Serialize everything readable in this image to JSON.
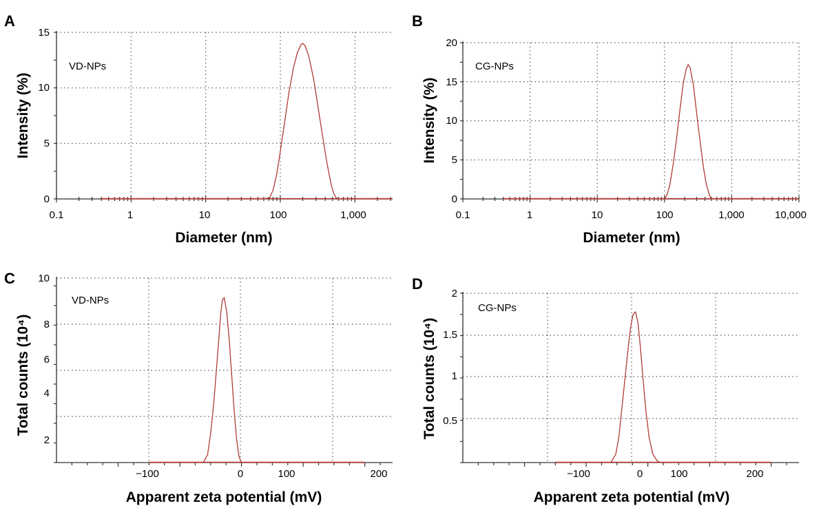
{
  "colors": {
    "curve": "#b03a32",
    "baseline": "#c9302c"
  },
  "chart_data": [
    {
      "id": "A",
      "panel_label": "A",
      "type": "line",
      "x_scale": "log",
      "xlabel": "Diameter (nm)",
      "ylabel": "Intensity (%)",
      "xlim": [
        0.1,
        3200
      ],
      "ylim": [
        0,
        15
      ],
      "x_ticks": [
        0.1,
        1,
        10,
        100,
        1000
      ],
      "x_tick_labels": [
        "0.1",
        "1",
        "10",
        "100",
        "1,000"
      ],
      "y_ticks": [
        0,
        5,
        10,
        15
      ],
      "y_tick_labels": [
        "0",
        "5",
        "10",
        "15"
      ],
      "annotation": "VD-NPs",
      "series": [
        {
          "x": [
            0.4,
            10,
            60,
            72,
            80,
            90,
            100,
            115,
            130,
            150,
            170,
            190,
            200,
            215,
            240,
            280,
            320,
            370,
            420,
            480,
            520,
            560,
            600,
            3200
          ],
          "y": [
            0,
            0,
            0,
            0.1,
            0.8,
            2.3,
            4.3,
            7.0,
            9.5,
            11.8,
            13.2,
            13.9,
            14.0,
            13.8,
            12.9,
            10.8,
            8.3,
            5.6,
            3.3,
            1.3,
            0.5,
            0.1,
            0,
            0
          ]
        }
      ]
    },
    {
      "id": "B",
      "panel_label": "B",
      "type": "line",
      "x_scale": "log",
      "xlabel": "Diameter (nm)",
      "ylabel": "Intensity (%)",
      "xlim": [
        0.1,
        10000
      ],
      "ylim": [
        0,
        20
      ],
      "x_ticks": [
        0.1,
        1,
        10,
        100,
        1000,
        10000
      ],
      "x_tick_labels": [
        "0.1",
        "1",
        "10",
        "100",
        "1,000",
        "10,000"
      ],
      "y_ticks": [
        0,
        5,
        10,
        15,
        20
      ],
      "y_tick_labels": [
        "0",
        "5",
        "10",
        "15",
        "20"
      ],
      "annotation": "CG-NPs",
      "series": [
        {
          "x": [
            0.4,
            10,
            80,
            100,
            110,
            120,
            135,
            150,
            170,
            190,
            210,
            225,
            240,
            270,
            300,
            340,
            380,
            420,
            470,
            500,
            10000
          ],
          "y": [
            0,
            0,
            0,
            0,
            0.6,
            1.8,
            4.5,
            7.5,
            11.5,
            14.8,
            16.6,
            17.2,
            16.8,
            14.5,
            11.0,
            7.2,
            4.0,
            1.8,
            0.4,
            0,
            0
          ]
        }
      ]
    },
    {
      "id": "C",
      "panel_label": "C",
      "type": "line",
      "x_scale": "linear",
      "xlabel": "Apparent zeta potential (mV)",
      "ylabel": "Total counts (10⁴)",
      "xlim": [
        -300,
        245
      ],
      "ylim": [
        0.6,
        10
      ],
      "x_ticks": [
        -100,
        0,
        100,
        200
      ],
      "x_tick_labels": [
        "−100",
        "0",
        "100",
        "200"
      ],
      "y_ticks": [
        2,
        4,
        6,
        8,
        10
      ],
      "y_tick_labels": [
        "2",
        "4",
        "6",
        "8",
        "10"
      ],
      "annotation": "VD-NPs",
      "series": [
        {
          "x": [
            -150,
            -100,
            -62,
            -55,
            -50,
            -45,
            -41,
            -37,
            -34,
            -31,
            -28,
            -24,
            -20,
            -16,
            -12,
            -8,
            -4,
            0,
            5,
            200
          ],
          "y": [
            0.6,
            0.6,
            0.6,
            1.0,
            2.1,
            3.6,
            5.2,
            6.8,
            8.1,
            8.9,
            9.0,
            8.3,
            6.9,
            5.1,
            3.3,
            1.8,
            0.9,
            0.6,
            0.6,
            0.6
          ]
        }
      ]
    },
    {
      "id": "D",
      "panel_label": "D",
      "type": "line",
      "x_scale": "linear",
      "xlabel": "Apparent zeta potential (mV)",
      "ylabel": "Total counts (10⁴)",
      "xlim": [
        -300,
        245
      ],
      "ylim": [
        0,
        2
      ],
      "x_ticks": [
        -100,
        0,
        100,
        200
      ],
      "x_tick_labels": [
        "−100",
        "0",
        "100",
        "200"
      ],
      "y_ticks": [
        0.5,
        1,
        1.5,
        2
      ],
      "y_tick_labels": [
        "0.5",
        "1",
        "1.5",
        "2"
      ],
      "annotation": "CG-NPs",
      "series": [
        {
          "x": [
            -150,
            -100,
            -60,
            -52,
            -47,
            -42,
            -37,
            -32,
            -28,
            -24,
            -20,
            -16,
            -12,
            -8,
            -3,
            2,
            8,
            15,
            20,
            25,
            200
          ],
          "y": [
            0,
            0,
            0,
            0.1,
            0.3,
            0.65,
            1.0,
            1.35,
            1.6,
            1.75,
            1.78,
            1.65,
            1.35,
            1.0,
            0.6,
            0.3,
            0.1,
            0.02,
            0,
            0,
            0
          ]
        }
      ]
    }
  ]
}
